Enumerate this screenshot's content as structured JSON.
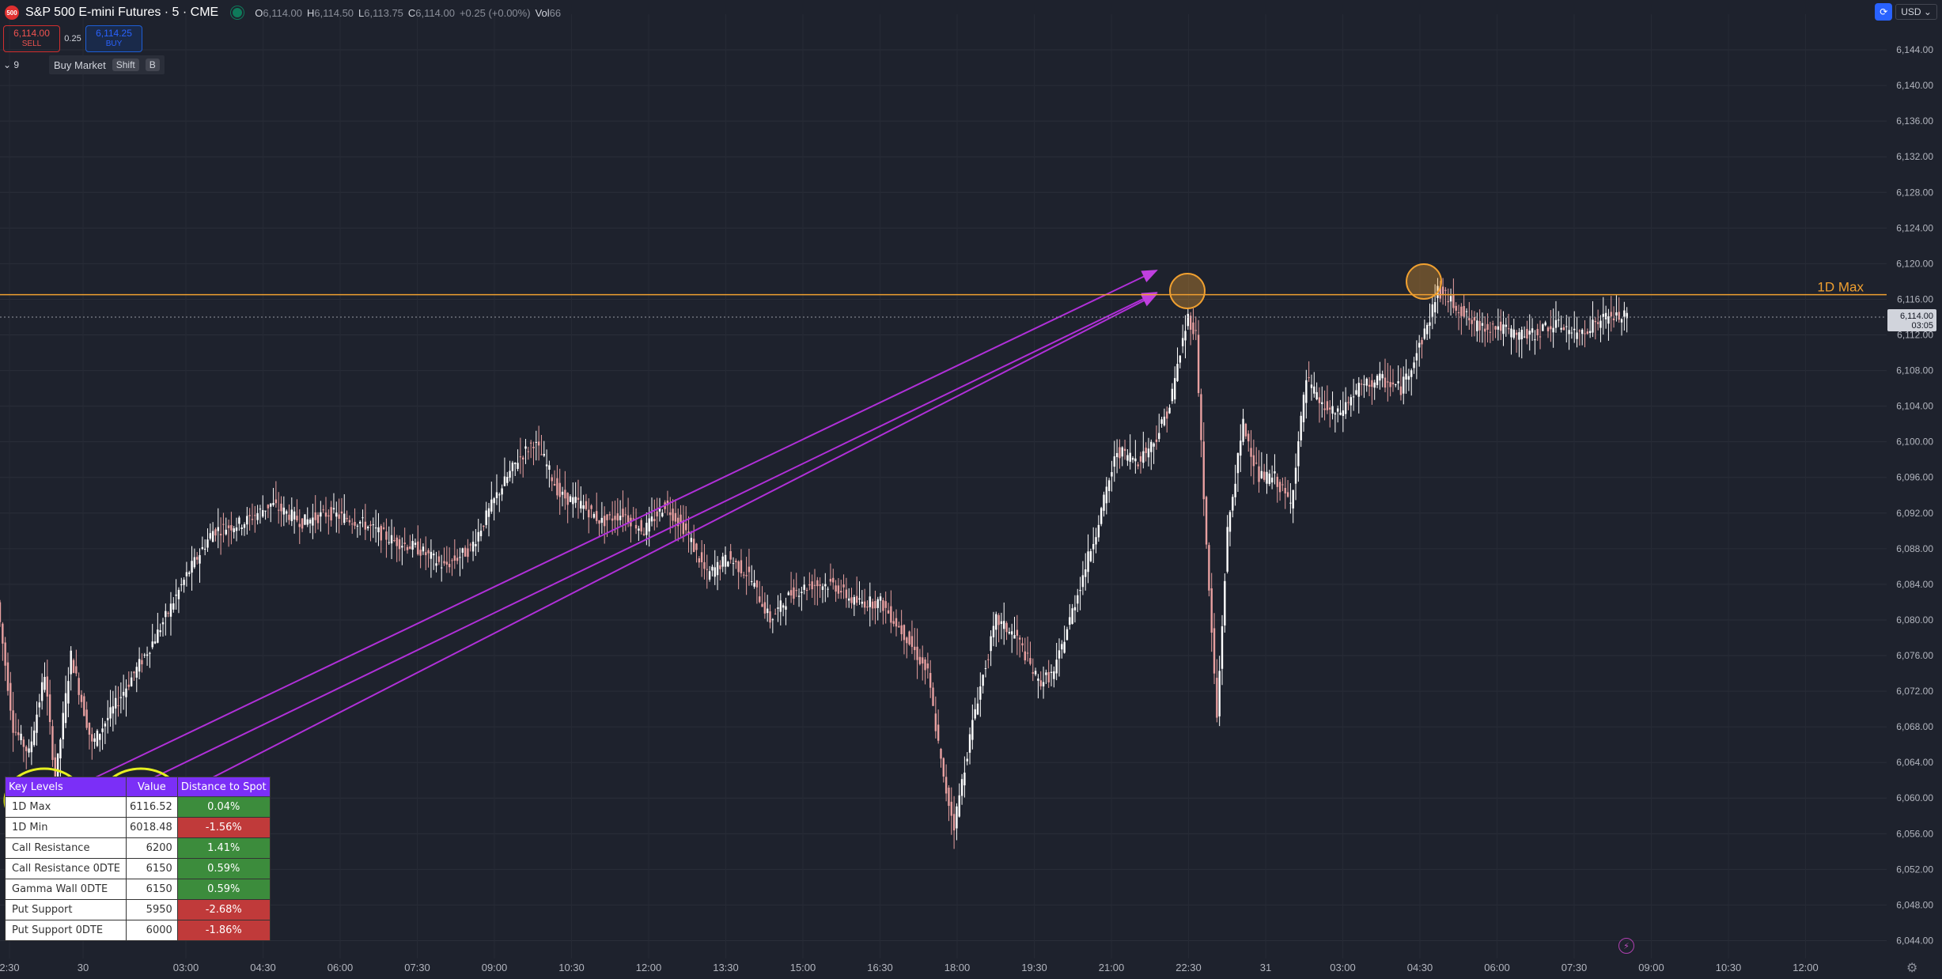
{
  "header": {
    "symbol_badge": "500",
    "title": "S&P 500 E-mini Futures · 5 · CME",
    "ohlc": [
      {
        "k": "O",
        "v": "6,114.00"
      },
      {
        "k": "H",
        "v": "6,114.50"
      },
      {
        "k": "L",
        "v": "6,113.75"
      },
      {
        "k": "C",
        "v": "6,114.00"
      },
      {
        "k": "",
        "v": "+0.25 (+0.00%)"
      },
      {
        "k": "Vol",
        "v": "66"
      }
    ]
  },
  "trade": {
    "sell_price": "6,114.00",
    "sell_label": "SELL",
    "spread": "0.25",
    "buy_price": "6,114.25",
    "buy_label": "BUY"
  },
  "order": {
    "collapse": "⌄ 9",
    "buy_market": "Buy Market",
    "key1": "Shift",
    "key2": "B"
  },
  "currency": {
    "icon": "⟳",
    "value": "USD ⌄"
  },
  "price_axis": {
    "labels": [
      "6,144.00",
      "6,140.00",
      "6,136.00",
      "6,132.00",
      "6,128.00",
      "6,124.00",
      "6,120.00",
      "6,116.00",
      "6,112.00",
      "6,108.00",
      "6,104.00",
      "6,100.00",
      "6,096.00",
      "6,092.00",
      "6,088.00",
      "6,084.00",
      "6,080.00",
      "6,076.00",
      "6,072.00",
      "6,068.00",
      "6,064.00",
      "6,060.00",
      "6,056.00",
      "6,052.00",
      "6,048.00",
      "6,044.00"
    ],
    "current_price": "6,114.00",
    "countdown": "03:05"
  },
  "time_axis": {
    "labels": [
      "2:30",
      "30",
      "03:00",
      "04:30",
      "06:00",
      "07:30",
      "09:00",
      "10:30",
      "12:00",
      "13:30",
      "15:00",
      "16:30",
      "18:00",
      "19:30",
      "21:00",
      "22:30",
      "31",
      "03:00",
      "04:30",
      "06:00",
      "07:30",
      "09:00",
      "10:30",
      "12:00"
    ]
  },
  "lines": {
    "max_label": "1D Max"
  },
  "key_levels_table": {
    "headers": [
      "Key Levels",
      "Value",
      "Distance to Spot"
    ],
    "rows": [
      {
        "level": "1D Max",
        "value": "6116.52",
        "distance": "0.04%",
        "sign": "pos"
      },
      {
        "level": "1D Min",
        "value": "6018.48",
        "distance": "-1.56%",
        "sign": "neg"
      },
      {
        "level": "Call Resistance",
        "value": "6200",
        "distance": "1.41%",
        "sign": "pos"
      },
      {
        "level": "Call Resistance 0DTE",
        "value": "6150",
        "distance": "0.59%",
        "sign": "pos"
      },
      {
        "level": "Gamma Wall 0DTE",
        "value": "6150",
        "distance": "0.59%",
        "sign": "pos"
      },
      {
        "level": "Put Support",
        "value": "5950",
        "distance": "-2.68%",
        "sign": "neg"
      },
      {
        "level": "Put Support 0DTE",
        "value": "6000",
        "distance": "-1.86%",
        "sign": "neg"
      }
    ]
  },
  "footer": {
    "bolt_icon": "⚡",
    "settings_icon": "⚙"
  },
  "chart_data": {
    "type": "candlestick",
    "ylim": [
      6042,
      6148
    ],
    "y_ticks": [
      6144,
      6140,
      6136,
      6132,
      6128,
      6124,
      6120,
      6116,
      6112,
      6108,
      6104,
      6100,
      6096,
      6092,
      6088,
      6084,
      6080,
      6076,
      6072,
      6068,
      6064,
      6060,
      6056,
      6052,
      6048,
      6044
    ],
    "current_price": 6114.0,
    "levels": [
      {
        "name": "1D Max",
        "value": 6116.52,
        "color": "#f0a030"
      }
    ],
    "close_path": [
      [
        0,
        6082
      ],
      [
        6,
        6068
      ],
      [
        12,
        6065
      ],
      [
        18,
        6074
      ],
      [
        22,
        6062
      ],
      [
        28,
        6076
      ],
      [
        36,
        6066
      ],
      [
        48,
        6072
      ],
      [
        60,
        6078
      ],
      [
        72,
        6085
      ],
      [
        82,
        6090
      ],
      [
        94,
        6091
      ],
      [
        104,
        6093
      ],
      [
        116,
        6091
      ],
      [
        126,
        6092
      ],
      [
        138,
        6091
      ],
      [
        150,
        6089
      ],
      [
        160,
        6088
      ],
      [
        170,
        6086
      ],
      [
        180,
        6088
      ],
      [
        190,
        6094
      ],
      [
        198,
        6098
      ],
      [
        204,
        6100
      ],
      [
        208,
        6098
      ],
      [
        214,
        6094
      ],
      [
        222,
        6093
      ],
      [
        230,
        6091
      ],
      [
        238,
        6092
      ],
      [
        246,
        6090
      ],
      [
        254,
        6093
      ],
      [
        262,
        6090
      ],
      [
        270,
        6085
      ],
      [
        278,
        6087
      ],
      [
        286,
        6085
      ],
      [
        294,
        6080
      ],
      [
        302,
        6083
      ],
      [
        310,
        6084
      ],
      [
        318,
        6084
      ],
      [
        326,
        6082
      ],
      [
        336,
        6082
      ],
      [
        346,
        6078
      ],
      [
        354,
        6074
      ],
      [
        360,
        6062
      ],
      [
        364,
        6057
      ],
      [
        372,
        6070
      ],
      [
        380,
        6080
      ],
      [
        388,
        6078
      ],
      [
        396,
        6073
      ],
      [
        402,
        6074
      ],
      [
        410,
        6082
      ],
      [
        418,
        6090
      ],
      [
        426,
        6099
      ],
      [
        434,
        6098
      ],
      [
        440,
        6100
      ],
      [
        446,
        6104
      ],
      [
        450,
        6110
      ],
      [
        453,
        6114
      ],
      [
        456,
        6112
      ],
      [
        460,
        6088
      ],
      [
        464,
        6069
      ],
      [
        468,
        6090
      ],
      [
        474,
        6102
      ],
      [
        480,
        6096
      ],
      [
        486,
        6096
      ],
      [
        492,
        6093
      ],
      [
        498,
        6107
      ],
      [
        504,
        6104
      ],
      [
        510,
        6103
      ],
      [
        518,
        6106
      ],
      [
        526,
        6107
      ],
      [
        534,
        6106
      ],
      [
        540,
        6110
      ],
      [
        544,
        6113
      ],
      [
        548,
        6117
      ],
      [
        552,
        6116
      ],
      [
        556,
        6115
      ],
      [
        562,
        6113
      ],
      [
        570,
        6113
      ],
      [
        578,
        6112
      ],
      [
        584,
        6112
      ],
      [
        590,
        6113
      ],
      [
        596,
        6113
      ],
      [
        600,
        6112
      ],
      [
        606,
        6113
      ],
      [
        612,
        6114
      ],
      [
        620,
        6114
      ]
    ]
  }
}
